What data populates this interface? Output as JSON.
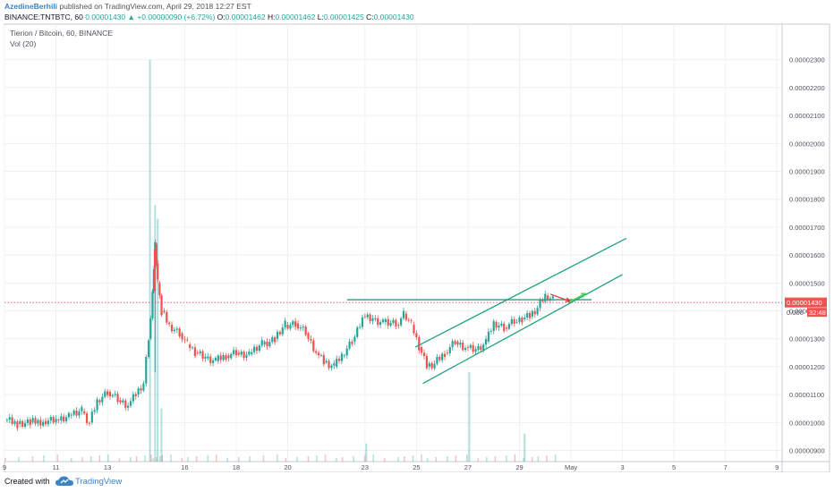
{
  "header": {
    "author": "AzedineBerhili",
    "published": "published on TradingView.com, April 29, 2018 12:27 EST",
    "symbol": "BINANCE:TNTBTC, 60",
    "price": "0.00001430",
    "change": "+0.00000090 (+6.72%)",
    "o_label": "O:",
    "o_value": "0.00001462",
    "h_label": "H:",
    "h_value": "0.00001462",
    "l_label": "L:",
    "l_value": "0.00001425",
    "c_label": "C:",
    "c_value": "0.00001430"
  },
  "overlay": {
    "title": "Tierion / Bitcoin, 60, BINANCE",
    "volume": "Vol (20)"
  },
  "footer": {
    "created": "Created with",
    "brand": "TradingView"
  },
  "colors": {
    "up": "#26a69a",
    "down": "#ef5350",
    "grid": "#eef0f3",
    "trendline": "#1fa37f",
    "arrow_down": "#e53935",
    "arrow_up": "#43d14b",
    "price_tag": "#ef5350",
    "price_line": "#e91e63"
  },
  "chart_data": {
    "type": "candlestick",
    "y_tick_labels": [
      "0.00002300",
      "0.00002200",
      "0.00002100",
      "0.00002000",
      "0.00001900",
      "0.00001800",
      "0.00001700",
      "0.00001600",
      "0.00001500",
      "0.00001400",
      "0.00001300",
      "0.00001200",
      "0.00001100",
      "0.00001000",
      "0.00000900"
    ],
    "y_ticks": [
      2300,
      2200,
      2100,
      2000,
      1900,
      1800,
      1700,
      1600,
      1500,
      1400,
      1300,
      1200,
      1100,
      1000,
      900
    ],
    "ylim": [
      860,
      2360
    ],
    "x_tick_labels": [
      "9",
      "11",
      "13",
      "16",
      "18",
      "20",
      "23",
      "25",
      "27",
      "29",
      "May",
      "3",
      "5",
      "7",
      "9"
    ],
    "x_ticks": [
      0,
      2,
      4,
      7,
      9,
      11,
      14,
      16,
      18,
      20,
      22,
      24,
      26,
      28,
      30
    ],
    "xlim": [
      0,
      30.2
    ],
    "last_price": 1430,
    "last_price_label": "0.00001430",
    "countdown_label": "32:48",
    "countdown_prefix": "0.000",
    "price_path": [
      [
        0,
        1010
      ],
      [
        0.5,
        995
      ],
      [
        1,
        1000
      ],
      [
        1.5,
        1005
      ],
      [
        2,
        1010
      ],
      [
        2.5,
        1025
      ],
      [
        3,
        1040
      ],
      [
        3.3,
        1000
      ],
      [
        3.6,
        1080
      ],
      [
        4,
        1110
      ],
      [
        4.4,
        1080
      ],
      [
        4.8,
        1060
      ],
      [
        5.1,
        1100
      ],
      [
        5.4,
        1140
      ],
      [
        5.6,
        1300
      ],
      [
        5.75,
        1470
      ],
      [
        5.85,
        1640
      ],
      [
        5.95,
        1500
      ],
      [
        6.1,
        1400
      ],
      [
        6.4,
        1350
      ],
      [
        6.8,
        1320
      ],
      [
        7.1,
        1280
      ],
      [
        7.4,
        1250
      ],
      [
        7.8,
        1230
      ],
      [
        8.2,
        1220
      ],
      [
        8.6,
        1240
      ],
      [
        9,
        1250
      ],
      [
        9.5,
        1245
      ],
      [
        10,
        1280
      ],
      [
        10.5,
        1300
      ],
      [
        10.9,
        1350
      ],
      [
        11.3,
        1355
      ],
      [
        11.7,
        1320
      ],
      [
        12.1,
        1250
      ],
      [
        12.4,
        1215
      ],
      [
        12.8,
        1200
      ],
      [
        13.1,
        1240
      ],
      [
        13.5,
        1290
      ],
      [
        13.9,
        1380
      ],
      [
        14.3,
        1370
      ],
      [
        14.7,
        1360
      ],
      [
        15.2,
        1350
      ],
      [
        15.5,
        1390
      ],
      [
        15.8,
        1350
      ],
      [
        16.1,
        1270
      ],
      [
        16.4,
        1200
      ],
      [
        16.7,
        1210
      ],
      [
        17.1,
        1250
      ],
      [
        17.5,
        1290
      ],
      [
        17.9,
        1270
      ],
      [
        18.3,
        1260
      ],
      [
        18.7,
        1290
      ],
      [
        19.0,
        1360
      ],
      [
        19.4,
        1340
      ],
      [
        19.8,
        1360
      ],
      [
        20.1,
        1370
      ],
      [
        20.4,
        1380
      ],
      [
        20.7,
        1410
      ],
      [
        21.0,
        1455
      ],
      [
        21.3,
        1440
      ]
    ],
    "volume": [
      [
        5.65,
        2300
      ],
      [
        5.85,
        1780
      ],
      [
        5.95,
        1730
      ],
      [
        6.1,
        1050
      ],
      [
        14.05,
        925
      ],
      [
        18.05,
        1180
      ],
      [
        20.2,
        960
      ]
    ],
    "trendlines": [
      [
        [
          13.3,
          1440
        ],
        [
          22.8,
          1440
        ]
      ],
      [
        [
          15.95,
          1270
        ],
        [
          24.15,
          1660
        ]
      ],
      [
        [
          16.25,
          1140
        ],
        [
          24.0,
          1530
        ]
      ]
    ],
    "arrows": [
      {
        "kind": "down",
        "from": [
          21.2,
          1460
        ],
        "to": [
          21.95,
          1435
        ]
      },
      {
        "kind": "up",
        "from": [
          21.9,
          1430
        ],
        "to": [
          22.55,
          1462
        ]
      }
    ]
  }
}
